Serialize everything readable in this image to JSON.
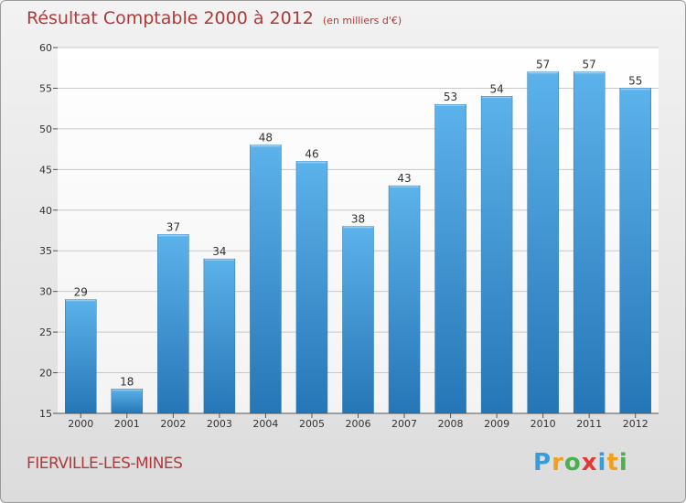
{
  "title": "Résultat Comptable 2000 à 2012",
  "subtitle": "(en milliers d'€)",
  "location": "FIERVILLE-LES-MINES",
  "brand": {
    "letters": [
      "P",
      "r",
      "o",
      "x",
      "i",
      "t",
      "i"
    ],
    "colors": [
      "#3a9bd9",
      "#f29f1e",
      "#4caf50",
      "#e53935",
      "#3a9bd9",
      "#f29f1e",
      "#4caf50"
    ]
  },
  "chart_data": {
    "type": "bar",
    "title": "Résultat Comptable 2000 à 2012",
    "xlabel": "",
    "ylabel": "",
    "categories": [
      "2000",
      "2001",
      "2002",
      "2003",
      "2004",
      "2005",
      "2006",
      "2007",
      "2008",
      "2009",
      "2010",
      "2011",
      "2012"
    ],
    "values": [
      29,
      18,
      37,
      34,
      48,
      46,
      38,
      43,
      53,
      54,
      57,
      57,
      55
    ],
    "ylim": [
      15,
      60
    ],
    "yticks": [
      15,
      20,
      25,
      30,
      35,
      40,
      45,
      50,
      55,
      60
    ],
    "grid": true,
    "bar_color": "#3b8fd0"
  }
}
